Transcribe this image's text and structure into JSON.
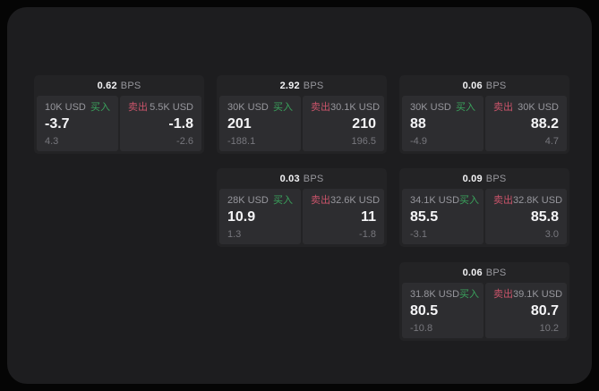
{
  "colors": {
    "background": "#050505",
    "panel_background": "#1d1d1f",
    "card_background": "#232325",
    "subpanel_background": "#2d2d30",
    "buy_green": "#3aa25c",
    "sell_red": "#c9546a",
    "value_white": "#f5f5f7",
    "label_gray": "#97979d",
    "sub_gray": "#77777d"
  },
  "cards": [
    {
      "row": 0,
      "col": 0,
      "bps_value": "0.62",
      "bps_unit": "BPS",
      "buy": {
        "amount": "10K USD",
        "side": "买入",
        "value": "-3.7",
        "sub": "4.3"
      },
      "sell": {
        "side": "卖出",
        "amount": "5.5K USD",
        "value": "-1.8",
        "sub": "-2.6"
      }
    },
    {
      "row": 0,
      "col": 1,
      "bps_value": "2.92",
      "bps_unit": "BPS",
      "buy": {
        "amount": "30K USD",
        "side": "买入",
        "value": "201",
        "sub": "-188.1"
      },
      "sell": {
        "side": "卖出",
        "amount": "30.1K USD",
        "value": "210",
        "sub": "196.5"
      }
    },
    {
      "row": 0,
      "col": 2,
      "bps_value": "0.06",
      "bps_unit": "BPS",
      "buy": {
        "amount": "30K USD",
        "side": "买入",
        "value": "88",
        "sub": "-4.9"
      },
      "sell": {
        "side": "卖出",
        "amount": "30K USD",
        "value": "88.2",
        "sub": "4.7"
      }
    },
    {
      "row": 1,
      "col": 1,
      "bps_value": "0.03",
      "bps_unit": "BPS",
      "buy": {
        "amount": "28K USD",
        "side": "买入",
        "value": "10.9",
        "sub": "1.3"
      },
      "sell": {
        "side": "卖出",
        "amount": "32.6K USD",
        "value": "11",
        "sub": "-1.8"
      }
    },
    {
      "row": 1,
      "col": 2,
      "bps_value": "0.09",
      "bps_unit": "BPS",
      "buy": {
        "amount": "34.1K USD",
        "side": "买入",
        "value": "85.5",
        "sub": "-3.1"
      },
      "sell": {
        "side": "卖出",
        "amount": "32.8K USD",
        "value": "85.8",
        "sub": "3.0"
      }
    },
    {
      "row": 2,
      "col": 2,
      "bps_value": "0.06",
      "bps_unit": "BPS",
      "buy": {
        "amount": "31.8K USD",
        "side": "买入",
        "value": "80.5",
        "sub": "-10.8"
      },
      "sell": {
        "side": "卖出",
        "amount": "39.1K USD",
        "value": "80.7",
        "sub": "10.2"
      }
    }
  ]
}
